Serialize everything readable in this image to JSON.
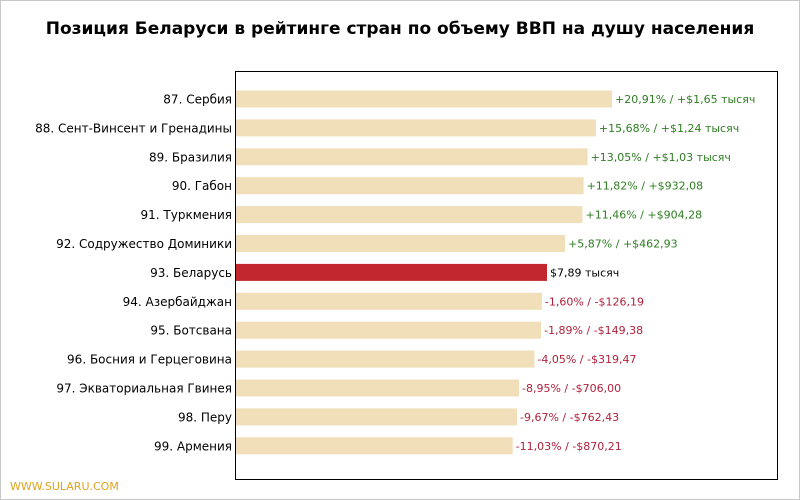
{
  "title": "Позиция Беларуси в рейтинге стран по объему ВВП на душу населения",
  "watermark": "WWW.SULARU.COM",
  "colors": {
    "bar": "#f1dfb9",
    "highlight_bar": "#c1272d",
    "positive_text": "#2e7d22",
    "negative_text": "#b0203a",
    "neutral_text": "#000000",
    "frame": "#000000"
  },
  "chart_data": {
    "type": "bar",
    "orientation": "horizontal",
    "title": "Позиция Беларуси в рейтинге стран по объему ВВП на душу населения",
    "xlabel": "",
    "ylabel": "",
    "grid": false,
    "legend": false,
    "units": "тысяч долларов США",
    "xlim": [
      0,
      13.7
    ],
    "highlight_index": 6,
    "categories": [
      "87. Сербия",
      "88. Сент-Винсент и Гренадины",
      "89. Бразилия",
      "90. Габон",
      "91. Туркмения",
      "92. Содружество Доминики",
      "93. Беларусь",
      "94. Азербайджан",
      "95. Ботсвана",
      "96. Босния и Герцеговина",
      "97. Экваториальная Гвинея",
      "98. Перу",
      "99. Армения"
    ],
    "values": [
      9.54,
      9.13,
      8.92,
      8.82,
      8.79,
      8.35,
      7.89,
      7.76,
      7.74,
      7.57,
      7.18,
      7.13,
      7.02
    ],
    "value_labels": [
      "+20,91% / +$1,65 тысяч",
      "+15,68% / +$1,24 тысяч",
      "+13,05% / +$1,03 тысяч",
      "+11,82% / +$932,08",
      "+11,46% / +$904,28",
      "+5,87% / +$462,93",
      "$7,89 тысяч",
      "-1,60% / -$126,19",
      "-1,89% / -$149,38",
      "-4,05% / -$319,47",
      "-8,95% / -$706,00",
      "-9,67% / -$762,43",
      "-11,03% / -$870,21"
    ],
    "label_sign": [
      "pos",
      "pos",
      "pos",
      "pos",
      "pos",
      "pos",
      "neutral",
      "neg",
      "neg",
      "neg",
      "neg",
      "neg",
      "neg"
    ]
  }
}
